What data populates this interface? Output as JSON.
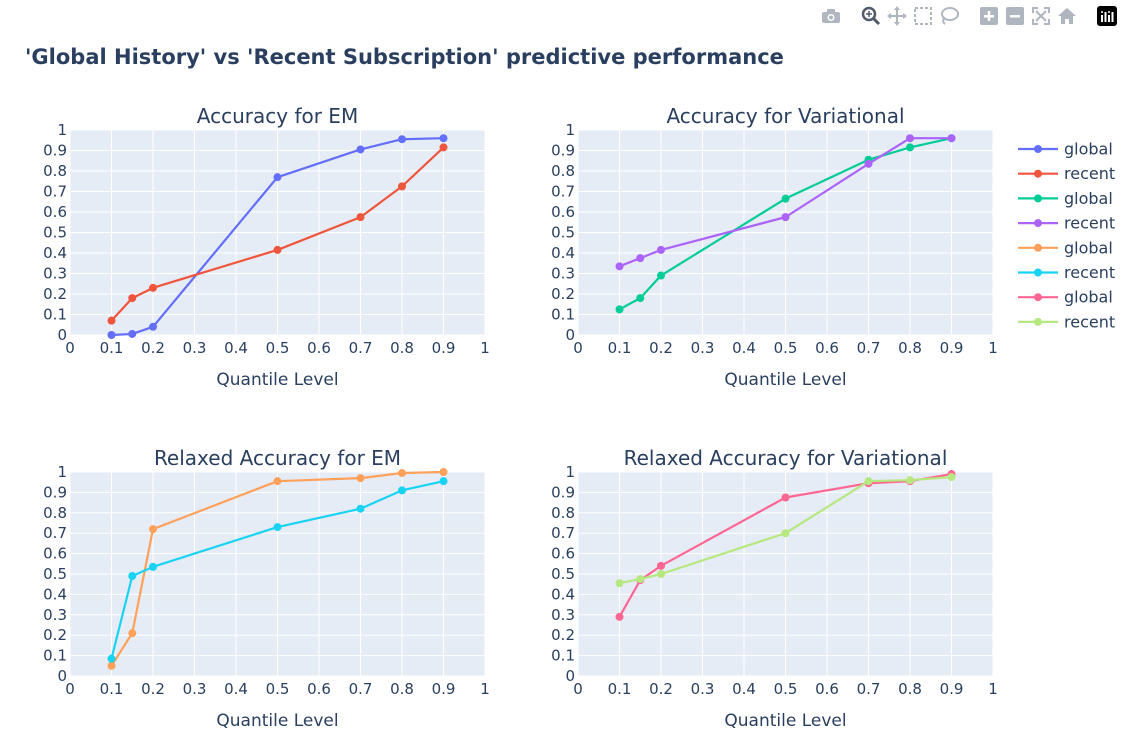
{
  "figure": {
    "title": "'Global History' vs 'Recent Subscription' predictive performance"
  },
  "modebar": [
    {
      "name": "camera-icon"
    },
    {
      "name": "zoom-icon"
    },
    {
      "name": "pan-icon"
    },
    {
      "name": "box-select-icon"
    },
    {
      "name": "lasso-select-icon"
    },
    {
      "name": "zoom-in-icon"
    },
    {
      "name": "zoom-out-icon"
    },
    {
      "name": "autoscale-icon"
    },
    {
      "name": "reset-axes-icon"
    },
    {
      "name": "plotly-logo-icon"
    }
  ],
  "legend": [
    {
      "label": "global",
      "color": "#636efa"
    },
    {
      "label": "recent",
      "color": "#EF553B"
    },
    {
      "label": "global",
      "color": "#00cc96"
    },
    {
      "label": "recent",
      "color": "#ab63fa"
    },
    {
      "label": "global",
      "color": "#FFA15A"
    },
    {
      "label": "recent",
      "color": "#19d3f3"
    },
    {
      "label": "global",
      "color": "#FF6692"
    },
    {
      "label": "recent",
      "color": "#B6E880"
    }
  ],
  "chart_data": [
    {
      "type": "line",
      "title": "Accuracy for EM",
      "xlabel": "Quantile Level",
      "ylabel": "",
      "xlim": [
        0,
        1
      ],
      "ylim": [
        0,
        1
      ],
      "xticks": [
        "0",
        "0.1",
        "0.2",
        "0.3",
        "0.4",
        "0.5",
        "0.6",
        "0.7",
        "0.8",
        "0.9",
        "1"
      ],
      "yticks": [
        "0",
        "0.1",
        "0.2",
        "0.3",
        "0.4",
        "0.5",
        "0.6",
        "0.7",
        "0.8",
        "0.9",
        "1"
      ],
      "grid": true,
      "x": [
        0.1,
        0.15,
        0.2,
        0.5,
        0.7,
        0.8,
        0.9
      ],
      "series": [
        {
          "name": "global",
          "color": "#636efa",
          "values": [
            0.0,
            0.005,
            0.04,
            0.77,
            0.905,
            0.955,
            0.96
          ]
        },
        {
          "name": "recent",
          "color": "#EF553B",
          "values": [
            0.07,
            0.18,
            0.23,
            0.415,
            0.575,
            0.725,
            0.915
          ]
        }
      ]
    },
    {
      "type": "line",
      "title": "Accuracy for Variational",
      "xlabel": "Quantile Level",
      "ylabel": "",
      "xlim": [
        0,
        1
      ],
      "ylim": [
        0,
        1
      ],
      "xticks": [
        "0",
        "0.1",
        "0.2",
        "0.3",
        "0.4",
        "0.5",
        "0.6",
        "0.7",
        "0.8",
        "0.9",
        "1"
      ],
      "yticks": [
        "0",
        "0.1",
        "0.2",
        "0.3",
        "0.4",
        "0.5",
        "0.6",
        "0.7",
        "0.8",
        "0.9",
        "1"
      ],
      "grid": true,
      "x": [
        0.1,
        0.15,
        0.2,
        0.5,
        0.7,
        0.8,
        0.9
      ],
      "series": [
        {
          "name": "global",
          "color": "#00cc96",
          "values": [
            0.125,
            0.18,
            0.29,
            0.665,
            0.855,
            0.915,
            0.96
          ]
        },
        {
          "name": "recent",
          "color": "#ab63fa",
          "values": [
            0.335,
            0.375,
            0.415,
            0.575,
            0.835,
            0.96,
            0.96
          ]
        }
      ]
    },
    {
      "type": "line",
      "title": "Relaxed Accuracy for EM",
      "xlabel": "Quantile Level",
      "ylabel": "",
      "xlim": [
        0,
        1
      ],
      "ylim": [
        0,
        1
      ],
      "xticks": [
        "0",
        "0.1",
        "0.2",
        "0.3",
        "0.4",
        "0.5",
        "0.6",
        "0.7",
        "0.8",
        "0.9",
        "1"
      ],
      "yticks": [
        "0",
        "0.1",
        "0.2",
        "0.3",
        "0.4",
        "0.5",
        "0.6",
        "0.7",
        "0.8",
        "0.9",
        "1"
      ],
      "grid": true,
      "x": [
        0.1,
        0.15,
        0.2,
        0.5,
        0.7,
        0.8,
        0.9
      ],
      "series": [
        {
          "name": "global",
          "color": "#FFA15A",
          "values": [
            0.05,
            0.21,
            0.72,
            0.955,
            0.97,
            0.995,
            1.0
          ]
        },
        {
          "name": "recent",
          "color": "#19d3f3",
          "values": [
            0.085,
            0.49,
            0.535,
            0.73,
            0.82,
            0.91,
            0.955
          ]
        }
      ]
    },
    {
      "type": "line",
      "title": "Relaxed Accuracy for Variational",
      "xlabel": "Quantile Level",
      "ylabel": "",
      "xlim": [
        0,
        1
      ],
      "ylim": [
        0,
        1
      ],
      "xticks": [
        "0",
        "0.1",
        "0.2",
        "0.3",
        "0.4",
        "0.5",
        "0.6",
        "0.7",
        "0.8",
        "0.9",
        "1"
      ],
      "yticks": [
        "0",
        "0.1",
        "0.2",
        "0.3",
        "0.4",
        "0.5",
        "0.6",
        "0.7",
        "0.8",
        "0.9",
        "1"
      ],
      "grid": true,
      "x": [
        0.1,
        0.15,
        0.2,
        0.5,
        0.7,
        0.8,
        0.9
      ],
      "series": [
        {
          "name": "global",
          "color": "#FF6692",
          "values": [
            0.29,
            0.47,
            0.54,
            0.875,
            0.945,
            0.955,
            0.99
          ]
        },
        {
          "name": "recent",
          "color": "#B6E880",
          "values": [
            0.455,
            0.475,
            0.5,
            0.7,
            0.955,
            0.96,
            0.975
          ]
        }
      ]
    }
  ]
}
